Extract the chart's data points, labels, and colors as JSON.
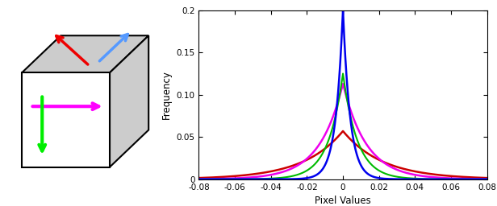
{
  "xlim": [
    -0.08,
    0.08
  ],
  "ylim": [
    0,
    0.2
  ],
  "xlabel": "Pixel Values",
  "ylabel": "Frequency",
  "yticks": [
    0,
    0.05,
    0.1,
    0.15,
    0.2
  ],
  "xticks": [
    -0.08,
    -0.06,
    -0.04,
    -0.02,
    0,
    0.02,
    0.04,
    0.06,
    0.08
  ],
  "curves": [
    {
      "color": "#0000EE",
      "scale": 0.004,
      "peak": 0.2,
      "lw": 1.8
    },
    {
      "color": "#00BB00",
      "scale": 0.008,
      "peak": 0.125,
      "lw": 1.5
    },
    {
      "color": "#EE00EE",
      "scale": 0.013,
      "peak": 0.113,
      "lw": 1.8
    },
    {
      "color": "#CC0000",
      "scale": 0.022,
      "peak": 0.057,
      "lw": 1.8
    }
  ],
  "background_color": "#ffffff",
  "cube_face_color": "#cccccc",
  "cube_edge_color": "#000000",
  "arrow_colors": {
    "red": "#EE0000",
    "blue": "#5599FF",
    "magenta": "#FF00FF",
    "green": "#00EE00"
  }
}
